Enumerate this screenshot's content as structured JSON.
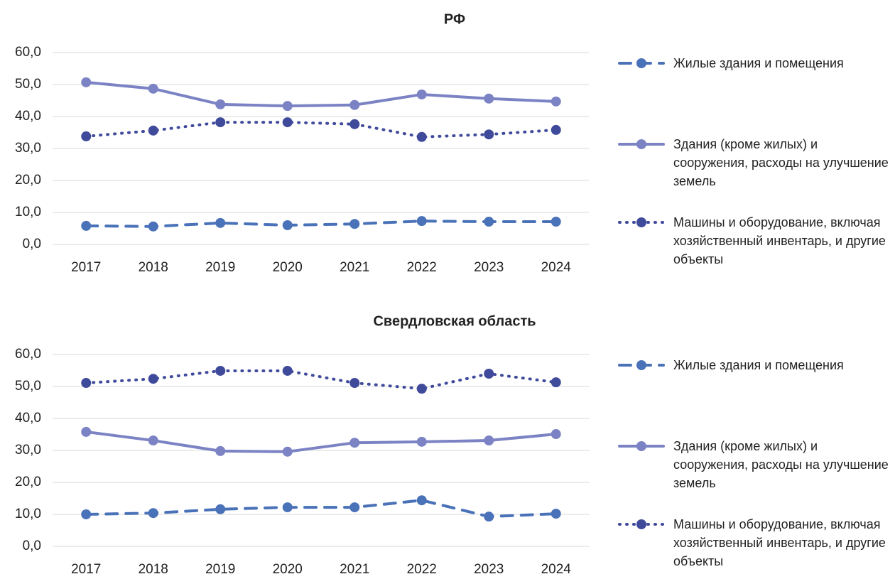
{
  "chart_data": [
    {
      "type": "line",
      "title": "РФ",
      "categories": [
        "2017",
        "2018",
        "2019",
        "2020",
        "2021",
        "2022",
        "2023",
        "2024"
      ],
      "ylim": [
        0,
        60
      ],
      "yticks": [
        {
          "value": 0,
          "label": "0,0"
        },
        {
          "value": 10,
          "label": "10,0"
        },
        {
          "value": 20,
          "label": "20,0"
        },
        {
          "value": 30,
          "label": "30,0"
        },
        {
          "value": 40,
          "label": "40,0"
        },
        {
          "value": 50,
          "label": "50,0"
        },
        {
          "value": 60,
          "label": "60,0"
        }
      ],
      "grid": true,
      "legend": "right",
      "series": [
        {
          "name": "Жилые здания и помещения",
          "color": "#4a72b8",
          "style": "dashed",
          "values": [
            5.8,
            5.6,
            6.7,
            6.0,
            6.4,
            7.3,
            7.1,
            7.1
          ]
        },
        {
          "name": "Здания (кроме жилых) и сооружения, расходы на улучшение земель",
          "color": "#7b83c4",
          "style": "solid",
          "values": [
            50.7,
            48.7,
            43.8,
            43.3,
            43.6,
            46.9,
            45.6,
            44.7
          ]
        },
        {
          "name": "Машины и оборудование, включая хозяйственный инвентарь, и другие объекты",
          "color": "#3f4a9b",
          "style": "dotted",
          "values": [
            33.8,
            35.6,
            38.2,
            38.2,
            37.6,
            33.6,
            34.4,
            35.8
          ]
        }
      ]
    },
    {
      "type": "line",
      "title": "Свердловская область",
      "categories": [
        "2017",
        "2018",
        "2019",
        "2020",
        "2021",
        "2022",
        "2023",
        "2024"
      ],
      "ylim": [
        0,
        60
      ],
      "yticks": [
        {
          "value": 0,
          "label": "0,0"
        },
        {
          "value": 10,
          "label": "10,0"
        },
        {
          "value": 20,
          "label": "20,0"
        },
        {
          "value": 30,
          "label": "30,0"
        },
        {
          "value": 40,
          "label": "40,0"
        },
        {
          "value": 50,
          "label": "50,0"
        },
        {
          "value": 60,
          "label": "60,0"
        }
      ],
      "grid": true,
      "legend": "right",
      "series": [
        {
          "name": "Жилые здания и помещения",
          "color": "#4a72b8",
          "style": "dashed",
          "values": [
            10.0,
            10.4,
            11.6,
            12.2,
            12.2,
            14.4,
            9.3,
            10.2
          ]
        },
        {
          "name": "Здания (кроме жилых) и сооружения, расходы на улучшение земель",
          "color": "#7b83c4",
          "style": "solid",
          "values": [
            35.8,
            33.1,
            29.8,
            29.6,
            32.4,
            32.7,
            33.1,
            35.1
          ]
        },
        {
          "name": "Машины и оборудование, включая хозяйственный инвентарь, и другие объекты",
          "color": "#3f4a9b",
          "style": "dotted",
          "values": [
            51.1,
            52.4,
            54.9,
            54.9,
            51.1,
            49.3,
            54.0,
            51.3
          ]
        }
      ]
    }
  ]
}
